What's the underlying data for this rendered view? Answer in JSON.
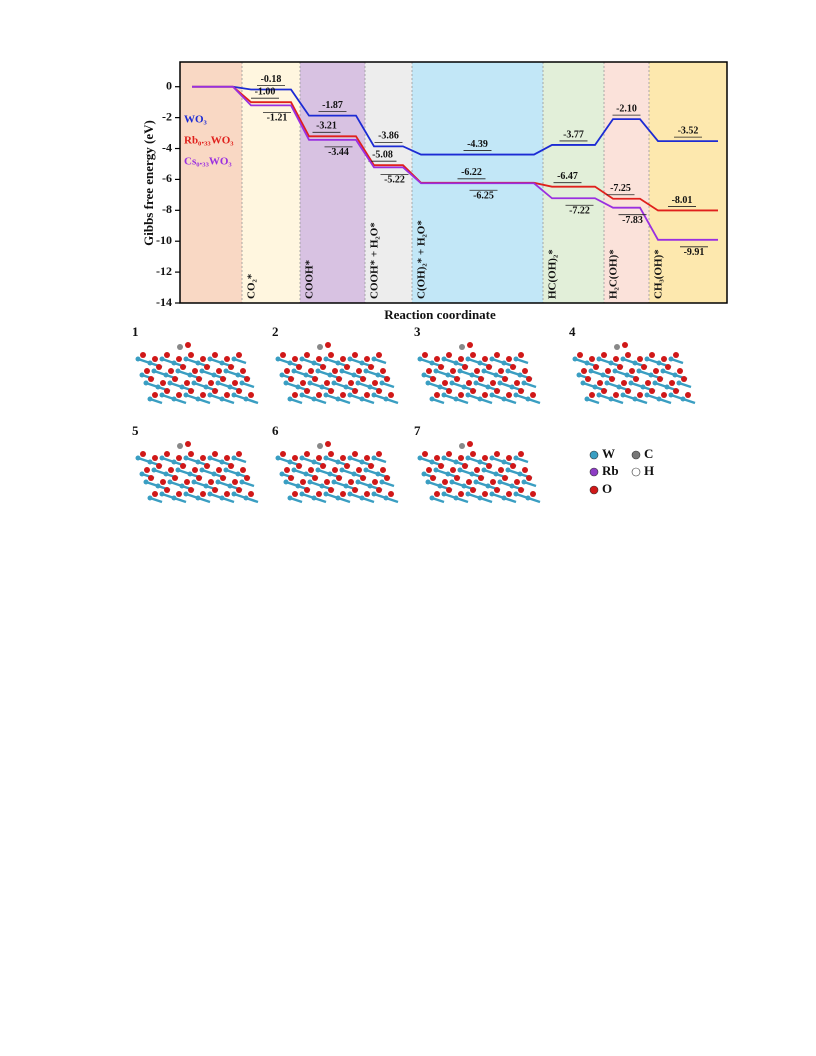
{
  "chart_data": {
    "type": "line",
    "ylabel": "Gibbs free energy (eV)",
    "xlabel": "Reaction coordinate",
    "categories": [
      null,
      "CO₂*",
      "COOH*",
      "COOH* + H₂O*",
      "C(OH)₂* + H₂O*",
      "HC(OH)₂*",
      "H₂C(OH)*",
      "CH₃(OH)*"
    ],
    "region_colors": [
      "#f9d8c4",
      "#fff6df",
      "#d8c2e2",
      "#ededed",
      "#c2e7f7",
      "#e2efd9",
      "#fbe2da",
      "#fde8ae"
    ],
    "ylim": [
      -14,
      1.6
    ],
    "yticks": [
      0,
      -2,
      -4,
      -6,
      -8,
      -10,
      -12,
      -14
    ],
    "series": [
      {
        "name": "WO₃",
        "color": "#1c2bd4",
        "values": [
          0,
          -0.18,
          -1.87,
          -3.86,
          -4.39,
          -3.77,
          -2.1,
          -3.52
        ],
        "value_labels": [
          null,
          "-0.18",
          "-1.87",
          "-3.86",
          "-4.39",
          "-3.77",
          "-2.10",
          "-3.52"
        ]
      },
      {
        "name": "Rb₀.₃₃WO₃",
        "color": "#e0201c",
        "values": [
          0,
          -1.0,
          -3.21,
          -5.08,
          -6.22,
          -6.47,
          -7.25,
          -8.01
        ],
        "value_labels": [
          null,
          "-1.00",
          "-3.21",
          "-5.08",
          "-6.22",
          "-6.47",
          "-7.25",
          "-8.01"
        ]
      },
      {
        "name": "Cs₀.₃₃WO₃",
        "color": "#9a2fe0",
        "values": [
          0,
          -1.21,
          -3.44,
          -5.22,
          -6.25,
          -7.22,
          -7.83,
          -9.91
        ],
        "value_labels": [
          null,
          "-1.21",
          "-3.44",
          "-5.22",
          "-6.25",
          "-7.22",
          "-7.83",
          "-9.91"
        ]
      }
    ]
  },
  "structures": {
    "panels": [
      "1",
      "2",
      "3",
      "4",
      "5",
      "6",
      "7"
    ],
    "legend": [
      "W",
      "C",
      "Rb",
      "H",
      "O"
    ]
  }
}
